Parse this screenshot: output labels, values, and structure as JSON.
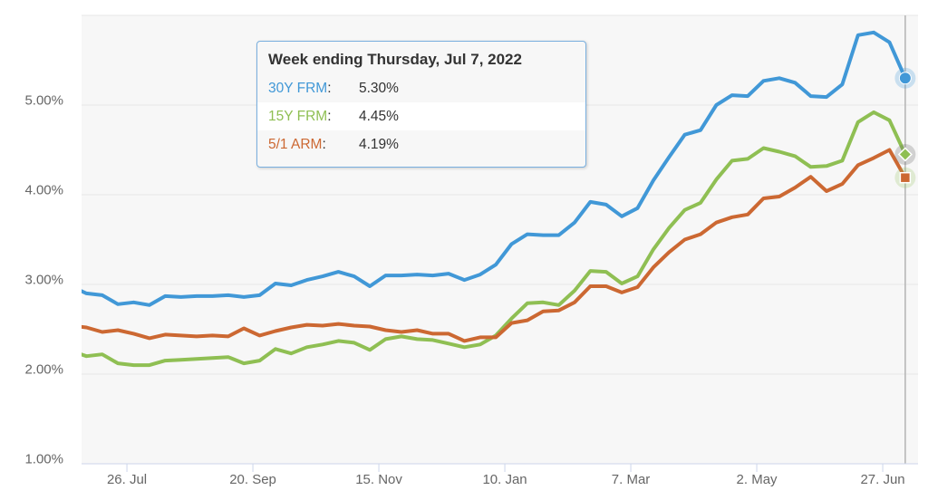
{
  "tooltip": {
    "title": "Week ending Thursday, Jul 7, 2022",
    "rows": [
      {
        "label": "30Y FRM",
        "value": "5.30%",
        "color": "#4198d7",
        "highlighted": false
      },
      {
        "label": "15Y FRM",
        "value": "4.45%",
        "color": "#8fbf53",
        "highlighted": true
      },
      {
        "label": "5/1 ARM",
        "value": "4.19%",
        "color": "#cc6832",
        "highlighted": false
      }
    ]
  },
  "chart_data": {
    "type": "line",
    "title": "",
    "xlabel": "",
    "ylabel": "",
    "ylim": [
      1,
      6
    ],
    "grid": true,
    "legend_position": "none",
    "plot_bg_color": "#f7f7f7",
    "grid_color": "#e7e7e7",
    "axis_line_color": "#ccd6eb",
    "crosshair_color": "#b3b3b3",
    "hover_index": 53,
    "yticks": [
      {
        "label": "5.00%",
        "value": 5
      },
      {
        "label": "4.00%",
        "value": 4
      },
      {
        "label": "3.00%",
        "value": 3
      },
      {
        "label": "2.00%",
        "value": 2
      },
      {
        "label": "1.00%",
        "value": 1
      }
    ],
    "xticks": [
      {
        "label": "26. Jul",
        "day": 25
      },
      {
        "label": "20. Sep",
        "day": 81
      },
      {
        "label": "15. Nov",
        "day": 137
      },
      {
        "label": "10. Jan",
        "day": 193
      },
      {
        "label": "7. Mar",
        "day": 249
      },
      {
        "label": "2. May",
        "day": 305
      },
      {
        "label": "27. Jun",
        "day": 361
      }
    ],
    "x": [
      "2021-07-01",
      "2021-07-08",
      "2021-07-15",
      "2021-07-22",
      "2021-07-29",
      "2021-08-05",
      "2021-08-12",
      "2021-08-19",
      "2021-08-26",
      "2021-09-02",
      "2021-09-09",
      "2021-09-16",
      "2021-09-23",
      "2021-09-30",
      "2021-10-07",
      "2021-10-14",
      "2021-10-21",
      "2021-10-28",
      "2021-11-04",
      "2021-11-11",
      "2021-11-18",
      "2021-11-24",
      "2021-12-02",
      "2021-12-09",
      "2021-12-16",
      "2021-12-23",
      "2021-12-30",
      "2022-01-06",
      "2022-01-13",
      "2022-01-20",
      "2022-01-27",
      "2022-02-03",
      "2022-02-10",
      "2022-02-17",
      "2022-02-24",
      "2022-03-03",
      "2022-03-10",
      "2022-03-17",
      "2022-03-24",
      "2022-03-31",
      "2022-04-07",
      "2022-04-14",
      "2022-04-21",
      "2022-04-28",
      "2022-05-05",
      "2022-05-12",
      "2022-05-19",
      "2022-05-26",
      "2022-06-02",
      "2022-06-09",
      "2022-06-16",
      "2022-06-23",
      "2022-06-30",
      "2022-07-07"
    ],
    "series": [
      {
        "name": "30Y FRM",
        "color": "#4198d7",
        "marker": "circle",
        "halo_color": "rgba(65,152,215,0.25)",
        "values": [
          2.98,
          2.9,
          2.88,
          2.78,
          2.8,
          2.77,
          2.87,
          2.86,
          2.87,
          2.87,
          2.88,
          2.86,
          2.88,
          3.01,
          2.99,
          3.05,
          3.09,
          3.14,
          3.09,
          2.98,
          3.1,
          3.1,
          3.11,
          3.1,
          3.12,
          3.05,
          3.11,
          3.22,
          3.45,
          3.56,
          3.55,
          3.55,
          3.69,
          3.92,
          3.89,
          3.76,
          3.85,
          4.16,
          4.42,
          4.67,
          4.72,
          5.0,
          5.11,
          5.1,
          5.27,
          5.3,
          5.25,
          5.1,
          5.09,
          5.23,
          5.78,
          5.81,
          5.7,
          5.3
        ]
      },
      {
        "name": "15Y FRM",
        "color": "#8fbf53",
        "marker": "diamond",
        "halo_color": "rgba(110,110,110,0.28)",
        "values": [
          2.26,
          2.2,
          2.22,
          2.12,
          2.1,
          2.1,
          2.15,
          2.16,
          2.17,
          2.18,
          2.19,
          2.12,
          2.15,
          2.28,
          2.23,
          2.3,
          2.33,
          2.37,
          2.35,
          2.27,
          2.39,
          2.42,
          2.39,
          2.38,
          2.34,
          2.3,
          2.33,
          2.43,
          2.62,
          2.79,
          2.8,
          2.77,
          2.93,
          3.15,
          3.14,
          3.01,
          3.09,
          3.39,
          3.63,
          3.83,
          3.91,
          4.17,
          4.38,
          4.4,
          4.52,
          4.48,
          4.43,
          4.31,
          4.32,
          4.38,
          4.81,
          4.92,
          4.83,
          4.45
        ]
      },
      {
        "name": "5/1 ARM",
        "color": "#cc6832",
        "marker": "square",
        "halo_color": "rgba(143,191,83,0.22)",
        "values": [
          2.54,
          2.52,
          2.47,
          2.49,
          2.45,
          2.4,
          2.44,
          2.43,
          2.42,
          2.43,
          2.42,
          2.51,
          2.43,
          2.48,
          2.52,
          2.55,
          2.54,
          2.56,
          2.54,
          2.53,
          2.49,
          2.47,
          2.49,
          2.45,
          2.45,
          2.37,
          2.41,
          2.41,
          2.57,
          2.6,
          2.7,
          2.71,
          2.8,
          2.98,
          2.98,
          2.91,
          2.97,
          3.19,
          3.36,
          3.5,
          3.56,
          3.69,
          3.75,
          3.78,
          3.96,
          3.98,
          4.08,
          4.2,
          4.04,
          4.12,
          4.33,
          4.41,
          4.5,
          4.19
        ]
      }
    ]
  }
}
